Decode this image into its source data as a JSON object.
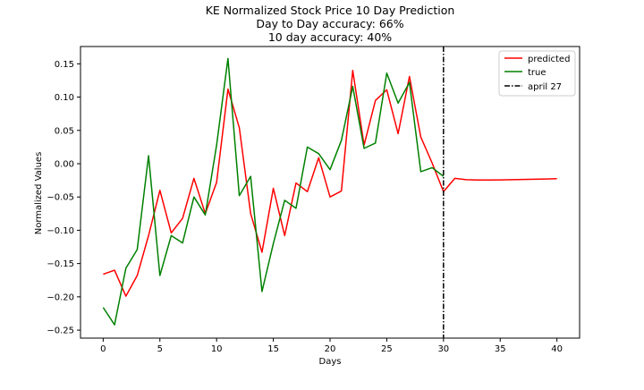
{
  "chart_data": {
    "type": "line",
    "title_lines": [
      "KE Normalized Stock Price 10 Day Prediction",
      "Day to Day accuracy: 66%",
      "10 day accuracy: 40%"
    ],
    "xlabel": "Days",
    "ylabel": "Normalized Values",
    "xlim": [
      -2,
      42
    ],
    "ylim": [
      -0.262,
      0.176
    ],
    "x_ticks": [
      0,
      5,
      10,
      15,
      20,
      25,
      30,
      35,
      40
    ],
    "y_ticks": [
      0.15,
      0.1,
      0.05,
      0.0,
      -0.05,
      -0.1,
      -0.15,
      -0.2,
      -0.25
    ],
    "y_tick_labels": [
      "0.15",
      "0.10",
      "0.05",
      "0.00",
      "−0.05",
      "−0.10",
      "−0.15",
      "−0.20",
      "−0.25"
    ],
    "grid": false,
    "legend_position": "top-right",
    "series": [
      {
        "name": "predicted",
        "color": "#ff0000",
        "style": "solid",
        "x": [
          0,
          1,
          2,
          3,
          4,
          5,
          6,
          7,
          8,
          9,
          10,
          11,
          12,
          13,
          14,
          15,
          16,
          17,
          18,
          19,
          20,
          21,
          22,
          23,
          24,
          25,
          26,
          27,
          28,
          29,
          30,
          31,
          32,
          33,
          34,
          35,
          36,
          37,
          38,
          39,
          40
        ],
        "y": [
          -0.166,
          -0.16,
          -0.199,
          -0.168,
          -0.108,
          -0.04,
          -0.104,
          -0.082,
          -0.022,
          -0.075,
          -0.028,
          0.112,
          0.054,
          -0.075,
          -0.133,
          -0.037,
          -0.108,
          -0.029,
          -0.042,
          0.009,
          -0.05,
          -0.041,
          0.14,
          0.028,
          0.095,
          0.111,
          0.045,
          0.131,
          0.04,
          0.001,
          -0.042,
          -0.022,
          -0.024,
          -0.0245,
          -0.0245,
          -0.0243,
          -0.024,
          -0.0237,
          -0.0233,
          -0.023,
          -0.0225
        ]
      },
      {
        "name": "true",
        "color": "#008000",
        "style": "solid",
        "x": [
          0,
          1,
          2,
          3,
          4,
          5,
          6,
          7,
          8,
          9,
          10,
          11,
          12,
          13,
          14,
          15,
          16,
          17,
          18,
          19,
          20,
          21,
          22,
          23,
          24,
          25,
          26,
          27,
          28,
          29,
          30
        ],
        "y": [
          -0.216,
          -0.242,
          -0.157,
          -0.129,
          0.012,
          -0.168,
          -0.108,
          -0.119,
          -0.05,
          -0.077,
          0.028,
          0.158,
          -0.048,
          -0.019,
          -0.192,
          -0.12,
          -0.055,
          -0.067,
          0.025,
          0.015,
          -0.009,
          0.035,
          0.116,
          0.023,
          0.031,
          0.136,
          0.091,
          0.122,
          -0.012,
          -0.006,
          -0.019
        ]
      },
      {
        "name": "april 27",
        "color": "#000000",
        "style": "dashdot",
        "vertical_x": 30
      }
    ]
  }
}
